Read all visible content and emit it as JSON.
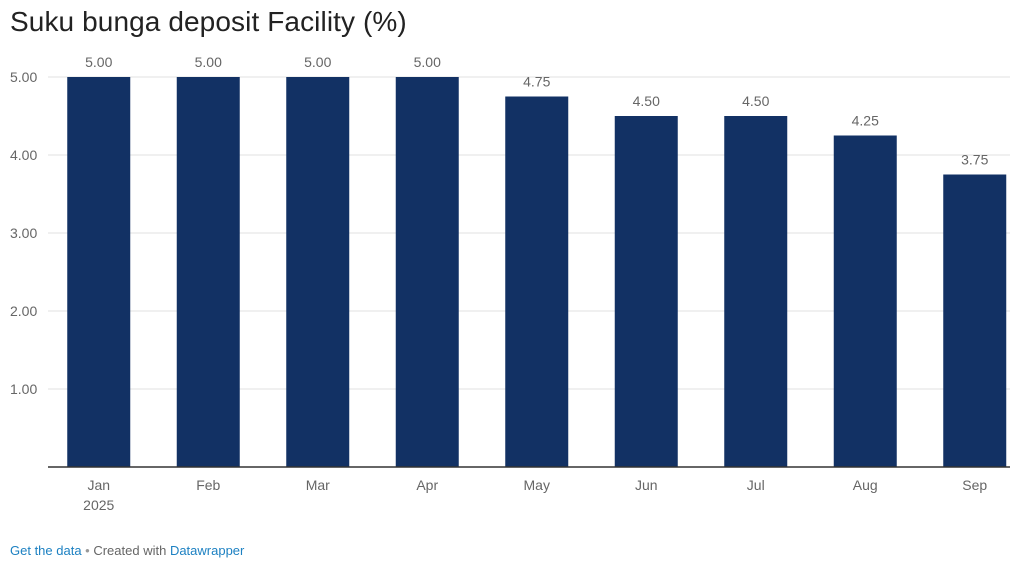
{
  "title": "Suku bunga deposit Facility (%)",
  "footer": {
    "get_data": "Get the data",
    "separator": " • ",
    "created_with": "Created with ",
    "tool": "Datawrapper"
  },
  "colors": {
    "bar": "#123164",
    "grid": "#e0e0e0",
    "axis": "#333333",
    "label": "#666666"
  },
  "chart_data": {
    "type": "bar",
    "title": "Suku bunga deposit Facility (%)",
    "categories": [
      "Jan",
      "Feb",
      "Mar",
      "Apr",
      "May",
      "Jun",
      "Jul",
      "Aug",
      "Sep"
    ],
    "year_label": "2025",
    "values": [
      5.0,
      5.0,
      5.0,
      5.0,
      4.75,
      4.5,
      4.5,
      4.25,
      3.75
    ],
    "value_labels": [
      "5.00",
      "5.00",
      "5.00",
      "5.00",
      "4.75",
      "4.50",
      "4.50",
      "4.25",
      "3.75"
    ],
    "yticks": [
      1,
      2,
      3,
      4,
      5
    ],
    "ytick_labels": [
      "1.00",
      "2.00",
      "3.00",
      "4.00",
      "5.00"
    ],
    "ylim": [
      0,
      5
    ],
    "xlabel": "",
    "ylabel": "",
    "grid": true,
    "legend": "none"
  }
}
